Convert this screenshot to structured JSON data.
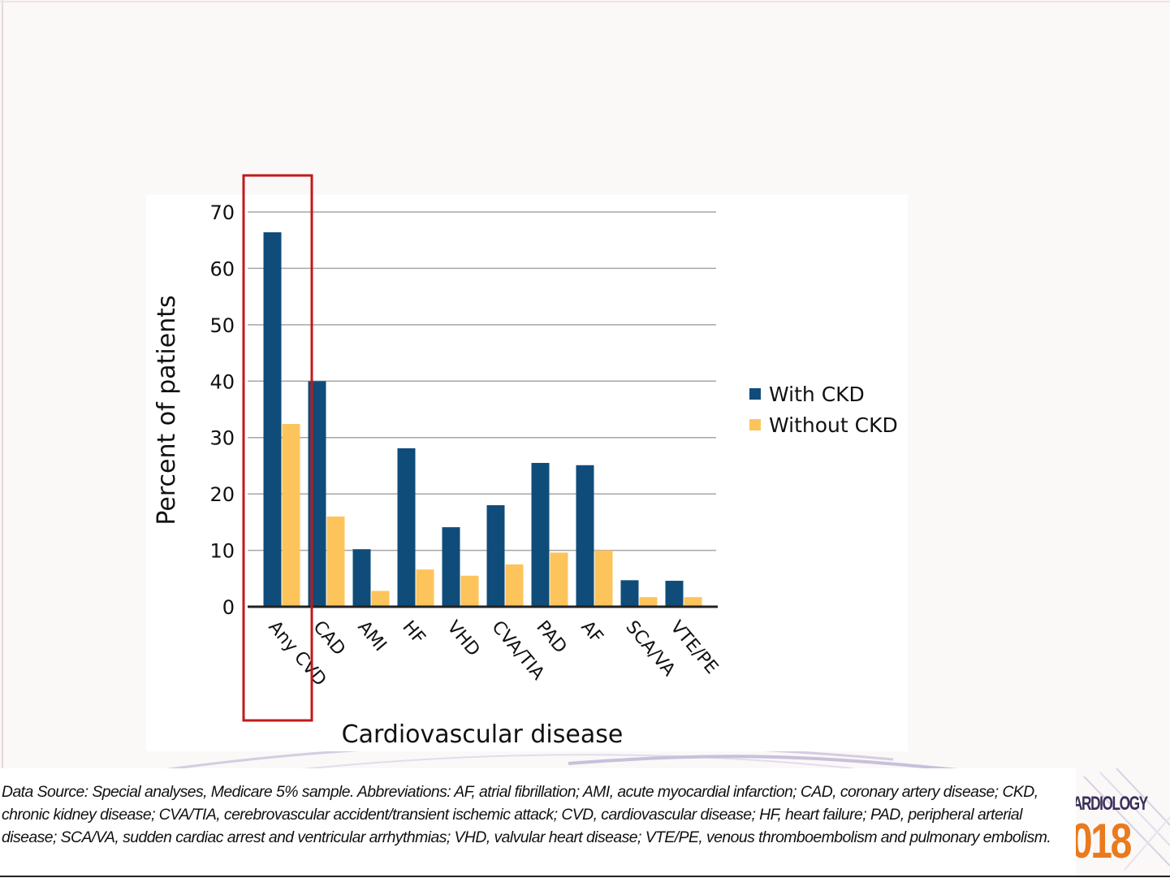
{
  "chart_data": {
    "type": "bar",
    "ylabel": "Percent of patients",
    "xlabel": "Cardiovascular disease",
    "ylim": [
      0,
      70
    ],
    "yticks": [
      0,
      10,
      20,
      30,
      40,
      50,
      60,
      70
    ],
    "grid": true,
    "legend_position": "right",
    "categories": [
      "Any CVD",
      "CAD",
      "AMI",
      "HF",
      "VHD",
      "CVA/TIA",
      "PAD",
      "AF",
      "SCA/VA",
      "VTE/PE"
    ],
    "series": [
      {
        "name": "With CKD",
        "color": "#0f4c7a",
        "values": [
          66.4,
          40.0,
          10.2,
          28.1,
          14.1,
          18.0,
          25.5,
          25.1,
          4.7,
          4.6
        ]
      },
      {
        "name": "Without CKD",
        "color": "#fdc45c",
        "values": [
          32.4,
          16.0,
          2.8,
          6.6,
          5.5,
          7.5,
          9.6,
          10.0,
          1.7,
          1.7
        ]
      }
    ],
    "highlight_category": "Any CVD",
    "highlight_color": "#c11a1a"
  },
  "footnote": "Data Source: Special analyses, Medicare 5% sample. Abbreviations: AF, atrial fibrillation; AMI, acute myocardial infarction; CAD, coronary artery disease; CKD, chronic kidney disease; CVA/TIA, cerebrovascular accident/transient ischemic attack; CVD, cardiovascular disease; HF, heart failure; PAD, peripheral arterial disease; SCA/VA, sudden cardiac arrest and ventricular arrhythmias; VHD, valvular heart disease; VTE/PE, venous thromboembolism and pulmonary embolism.",
  "logo": {
    "line1": "ARDIOLOGY",
    "line2": "018"
  }
}
